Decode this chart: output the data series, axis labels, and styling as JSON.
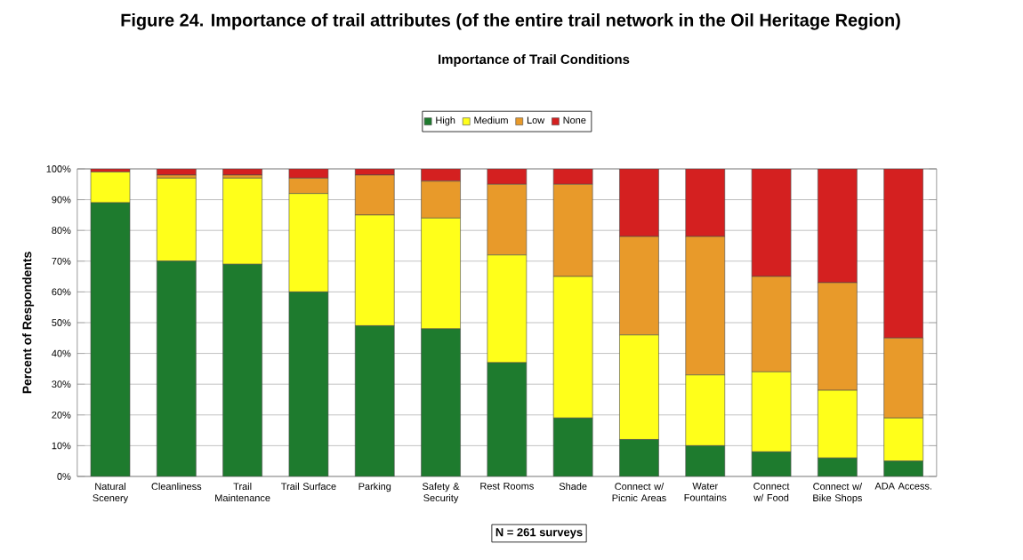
{
  "chart_data": {
    "type": "bar",
    "stacked": true,
    "title": "Figure 24.  Importance of trail attributes (of the entire trail network in the Oil Heritage Region)",
    "subtitle": "Importance of Trail Conditions",
    "ylabel": "Percent of Respondents",
    "categories": [
      "Natural Scenery",
      "Cleanliness",
      "Trail Maintenance",
      "Trail Surface",
      "Parking",
      "Safety & Security",
      "Rest Rooms",
      "Shade",
      "Connect w/ Picnic Areas",
      "Water Fountains",
      "Connect w/ Food",
      "Connect w/ Bike Shops",
      "ADA Access."
    ],
    "series": [
      {
        "name": "High",
        "color": "#1e7b2e",
        "values": [
          89,
          70,
          69,
          60,
          49,
          48,
          37,
          19,
          12,
          10,
          8,
          6,
          5
        ]
      },
      {
        "name": "Medium",
        "color": "#ffff1a",
        "values": [
          10,
          27,
          28,
          32,
          36,
          36,
          35,
          46,
          34,
          23,
          26,
          22,
          14
        ]
      },
      {
        "name": "Low",
        "color": "#e89a2a",
        "values": [
          0,
          1,
          1,
          5,
          13,
          12,
          23,
          30,
          32,
          45,
          31,
          35,
          26
        ]
      },
      {
        "name": "None",
        "color": "#d42020",
        "values": [
          1,
          2,
          2,
          3,
          2,
          4,
          5,
          5,
          22,
          22,
          35,
          37,
          55
        ]
      }
    ],
    "ylim": [
      0,
      100
    ],
    "yticks": [
      {
        "value": 0,
        "label": "0%"
      },
      {
        "value": 10,
        "label": "10%"
      },
      {
        "value": 20,
        "label": "20%"
      },
      {
        "value": 30,
        "label": "30%"
      },
      {
        "value": 40,
        "label": "40%"
      },
      {
        "value": 50,
        "label": "50%"
      },
      {
        "value": 60,
        "label": "60%"
      },
      {
        "value": 70,
        "label": "70%"
      },
      {
        "value": 80,
        "label": "80%"
      },
      {
        "value": 90,
        "label": "90%"
      },
      {
        "value": 100,
        "label": "100%"
      }
    ],
    "grid": "y",
    "legend": "top",
    "annotations": [
      "N = 261 surveys"
    ]
  }
}
